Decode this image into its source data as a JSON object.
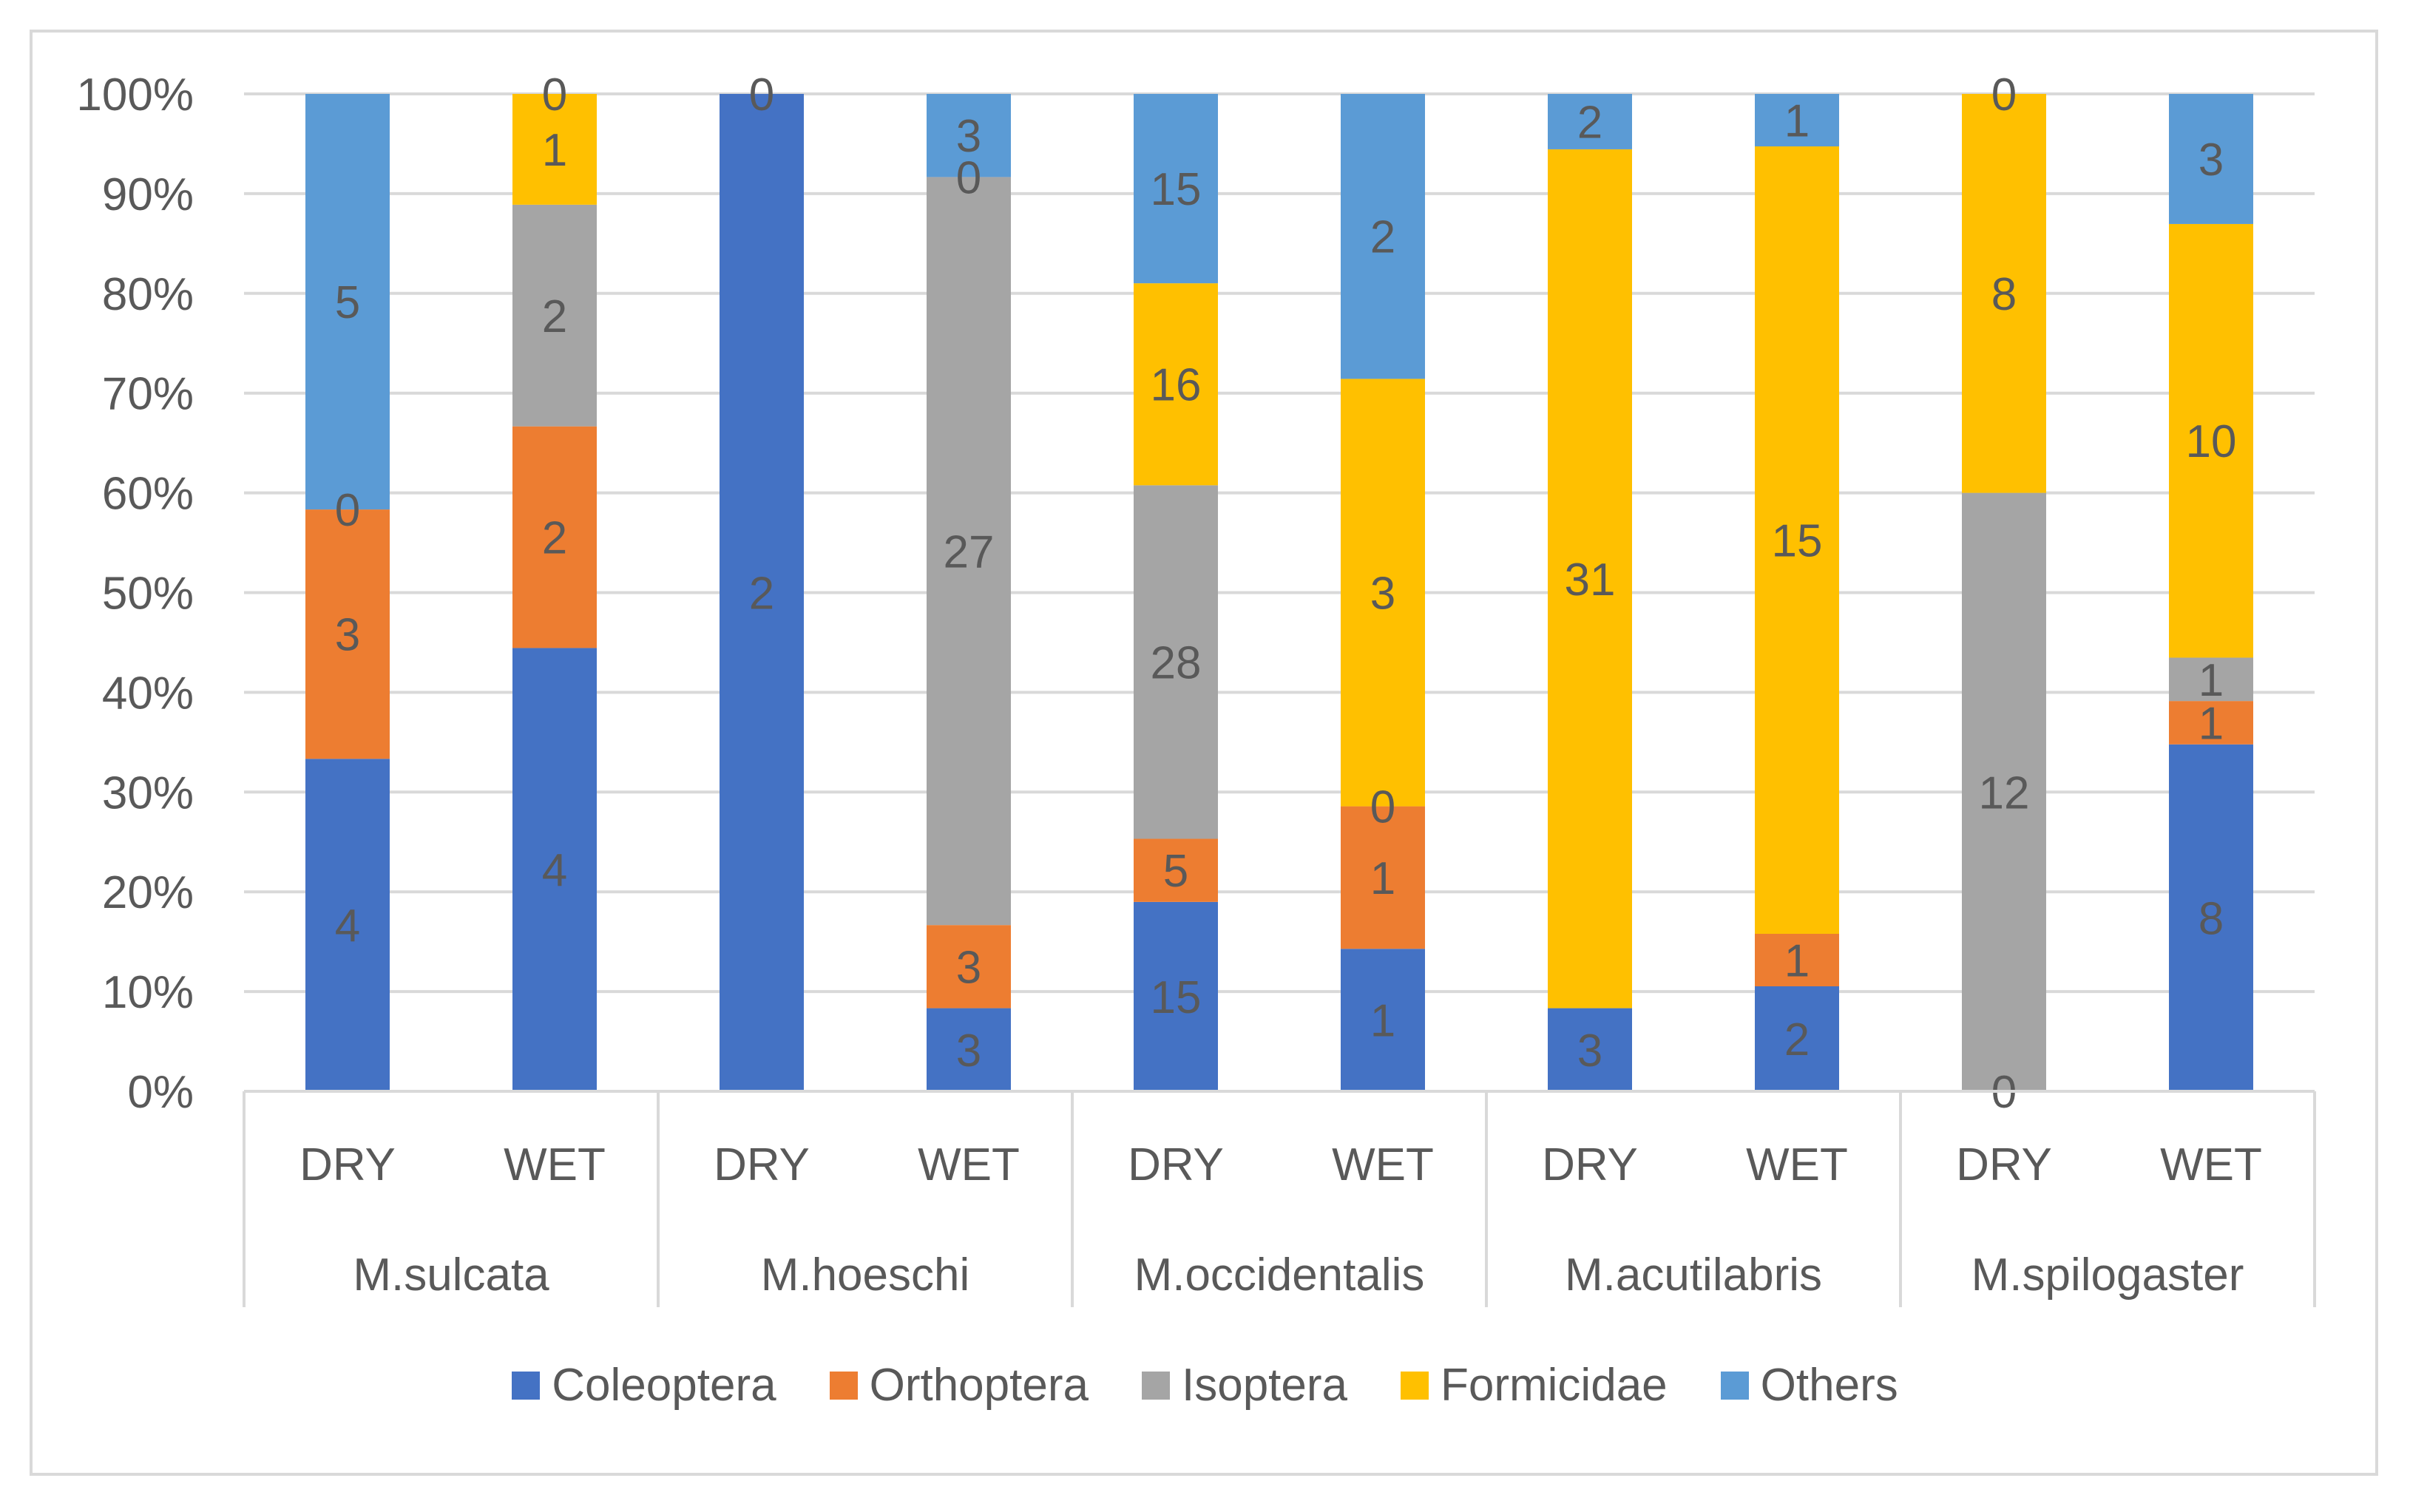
{
  "chart_data": {
    "type": "bar",
    "stacked": true,
    "percent_stacked": true,
    "y_axis_ticks": [
      "0%",
      "10%",
      "20%",
      "30%",
      "40%",
      "50%",
      "60%",
      "70%",
      "80%",
      "90%",
      "100%"
    ],
    "ylim": [
      0,
      100
    ],
    "grid": true,
    "legend_position": "bottom",
    "groups": [
      "M.sulcata",
      "M.hoeschi",
      "M.occidentalis",
      "M.acutilabris",
      "M.spilogaster"
    ],
    "categories": [
      "DRY",
      "WET",
      "DRY",
      "WET",
      "DRY",
      "WET",
      "DRY",
      "WET",
      "DRY",
      "WET"
    ],
    "series": [
      {
        "name": "Coleoptera",
        "color": "#4472c4",
        "values": [
          4,
          4,
          2,
          3,
          15,
          1,
          3,
          2,
          0,
          8
        ]
      },
      {
        "name": "Orthoptera",
        "color": "#ed7d31",
        "values": [
          3,
          2,
          0,
          3,
          5,
          1,
          0,
          1,
          0,
          1
        ]
      },
      {
        "name": "Isoptera",
        "color": "#a5a5a5",
        "values": [
          0,
          2,
          0,
          27,
          28,
          0,
          0,
          0,
          12,
          1
        ]
      },
      {
        "name": "Formicidae",
        "color": "#ffc000",
        "values": [
          0,
          1,
          0,
          0,
          16,
          3,
          31,
          15,
          8,
          10
        ]
      },
      {
        "name": "Others",
        "color": "#5b9bd5",
        "values": [
          5,
          0,
          0,
          3,
          15,
          2,
          2,
          1,
          0,
          3
        ]
      }
    ],
    "data_labels": [
      [
        "4",
        "3",
        "0",
        null,
        "5"
      ],
      [
        "4",
        "2",
        "2",
        "1",
        "0"
      ],
      [
        "2",
        null,
        null,
        null,
        "0"
      ],
      [
        "3",
        "3",
        "27",
        "0",
        "3"
      ],
      [
        "15",
        "5",
        "28",
        "16",
        "15"
      ],
      [
        "1",
        "1",
        "0",
        "3",
        "2"
      ],
      [
        "3",
        null,
        null,
        "31",
        "2"
      ],
      [
        "2",
        "1",
        null,
        "15",
        "1"
      ],
      [
        "0",
        null,
        "12",
        "8",
        "0"
      ],
      [
        "8",
        "1",
        "1",
        "10",
        "3"
      ]
    ],
    "data_label_overrides": {
      "0": {
        "zero_label_series": 2
      },
      "2": {
        "top_zero": true
      },
      "6": {
        "zero_label_series": 1
      },
      "7": {
        "zero_label_series": 2
      },
      "8": {
        "bottom_zero": true,
        "top_zero": true
      }
    }
  }
}
